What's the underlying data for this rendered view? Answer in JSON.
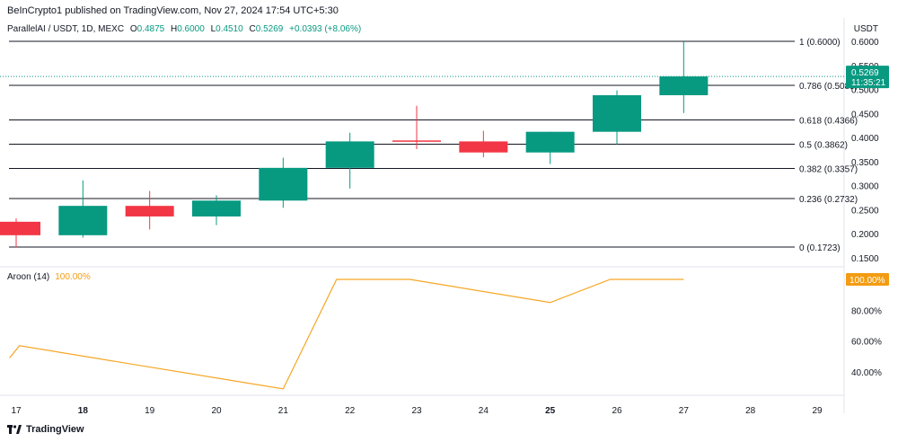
{
  "header": {
    "publisher": "BeInCrypto1 published on TradingView.com, Nov 27, 2024 17:54 UTC+5:30",
    "unit": "USDT"
  },
  "legend": {
    "symbol": "ParallelAI / USDT, 1D, MEXC",
    "o_label": "O",
    "o_value": "0.4875",
    "h_label": "H",
    "h_value": "0.6000",
    "l_label": "L",
    "l_value": "0.4510",
    "c_label": "C",
    "c_value": "0.5269",
    "change": "+0.0393 (+8.06%)"
  },
  "aroon_legend": {
    "name": "Aroon (14)",
    "value": "100.00%"
  },
  "footer": {
    "brand": "TradingView"
  },
  "colors": {
    "up": "#089981",
    "down": "#f23645",
    "aroon": "#f5a623",
    "fib": "#131722"
  },
  "chart_data": [
    {
      "type": "candlestick",
      "title": "",
      "x_ticks": [
        "17",
        "18",
        "19",
        "20",
        "21",
        "22",
        "23",
        "24",
        "25",
        "26",
        "27",
        "28",
        "29"
      ],
      "y_ticks": [
        "0.6000",
        "0.5500",
        "0.5000",
        "0.4500",
        "0.4000",
        "0.3500",
        "0.3000",
        "0.2500",
        "0.2000",
        "0.1500"
      ],
      "ylim": [
        0.13,
        0.62
      ],
      "candles": [
        {
          "x": 17.0,
          "open": 0.225,
          "high": 0.232,
          "low": 0.172,
          "close": 0.197
        },
        {
          "x": 18.0,
          "open": 0.197,
          "high": 0.311,
          "low": 0.192,
          "close": 0.258
        },
        {
          "x": 19.0,
          "open": 0.258,
          "high": 0.289,
          "low": 0.209,
          "close": 0.236
        },
        {
          "x": 20.0,
          "open": 0.236,
          "high": 0.28,
          "low": 0.218,
          "close": 0.269
        },
        {
          "x": 21.0,
          "open": 0.269,
          "high": 0.358,
          "low": 0.254,
          "close": 0.337
        },
        {
          "x": 22.0,
          "open": 0.337,
          "high": 0.41,
          "low": 0.294,
          "close": 0.392
        },
        {
          "x": 23.0,
          "open": 0.394,
          "high": 0.466,
          "low": 0.376,
          "close": 0.392
        },
        {
          "x": 24.0,
          "open": 0.392,
          "high": 0.414,
          "low": 0.359,
          "close": 0.369
        },
        {
          "x": 25.0,
          "open": 0.369,
          "high": 0.412,
          "low": 0.345,
          "close": 0.412
        },
        {
          "x": 26.0,
          "open": 0.412,
          "high": 0.498,
          "low": 0.386,
          "close": 0.488
        },
        {
          "x": 27.0,
          "open": 0.488,
          "high": 0.6,
          "low": 0.451,
          "close": 0.527
        }
      ],
      "fib_levels": [
        {
          "label": "1 (0.6000)",
          "value": 0.6
        },
        {
          "label": "0.786 (0.5085)",
          "value": 0.5085
        },
        {
          "label": "0.618 (0.4366)",
          "value": 0.4366
        },
        {
          "label": "0.5 (0.3862)",
          "value": 0.3862
        },
        {
          "label": "0.382 (0.3357)",
          "value": 0.3357
        },
        {
          "label": "0.236 (0.2732)",
          "value": 0.2732
        },
        {
          "label": "0 (0.1723)",
          "value": 0.1723
        }
      ],
      "price_label": {
        "value": 0.5269,
        "text": "0.5269",
        "countdown": "11:35:21"
      }
    },
    {
      "type": "line",
      "title": "",
      "series": [
        {
          "name": "Aroon (14)",
          "x": [
            16.9,
            17.05,
            21.0,
            21.8,
            22.9,
            25.0,
            25.9,
            27.0
          ],
          "values": [
            49,
            57,
            29,
            100,
            100,
            85,
            100,
            100
          ]
        }
      ],
      "y_ticks": [
        "100.00%",
        "80.00%",
        "60.00%",
        "40.00%"
      ],
      "ylim": [
        25,
        105
      ],
      "last_value_label": "100.00%"
    }
  ]
}
